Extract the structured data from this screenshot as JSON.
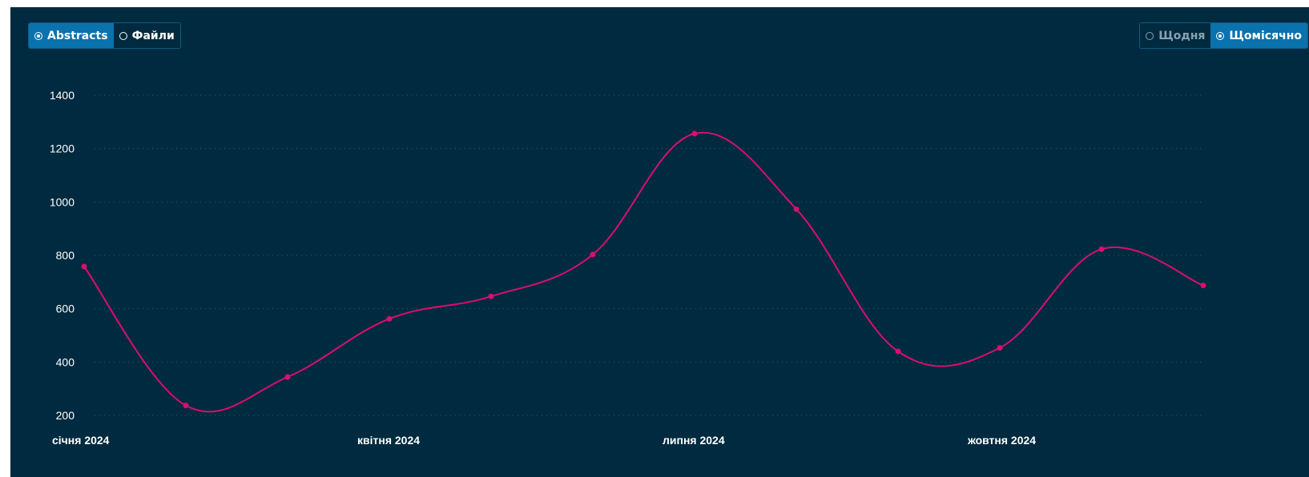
{
  "controls": {
    "dataset_options": [
      {
        "label": "Abstracts",
        "selected": true
      },
      {
        "label": "Файли",
        "selected": false
      }
    ],
    "period_options": [
      {
        "label": "Щодня",
        "selected": false
      },
      {
        "label": "Щомісячно",
        "selected": true
      }
    ]
  },
  "colors": {
    "background": "#002a3f",
    "line": "#d90f6f",
    "accent": "#0a72ad",
    "grid": "#3d5a6b"
  },
  "chart_data": {
    "type": "line",
    "title": "",
    "xlabel": "",
    "ylabel": "",
    "x": [
      "2024-01",
      "2024-02",
      "2024-03",
      "2024-04",
      "2024-05",
      "2024-06",
      "2024-07",
      "2024-08",
      "2024-09",
      "2024-10",
      "2024-11",
      "2024-12"
    ],
    "x_tick_labels": [
      {
        "x": "2024-01",
        "label": "січня 2024"
      },
      {
        "x": "2024-04",
        "label": "квітня 2024"
      },
      {
        "x": "2024-07",
        "label": "липня 2024"
      },
      {
        "x": "2024-10",
        "label": "жовтня 2024"
      }
    ],
    "series": [
      {
        "values": [
          758,
          237,
          344,
          562,
          646,
          803,
          1256,
          973,
          440,
          453,
          823,
          687
        ]
      }
    ],
    "yticks": [
      200,
      400,
      600,
      800,
      1000,
      1200,
      1400
    ],
    "ylim": [
      200,
      1400
    ],
    "grid": true,
    "curve": "smooth"
  }
}
